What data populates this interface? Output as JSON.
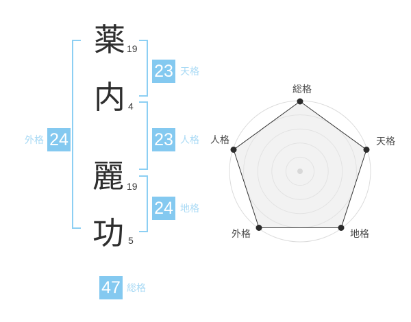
{
  "name_analysis": {
    "characters": [
      {
        "char": "薬",
        "strokes": "19"
      },
      {
        "char": "内",
        "strokes": "4"
      },
      {
        "char": "麗",
        "strokes": "19"
      },
      {
        "char": "功",
        "strokes": "5"
      }
    ],
    "kaku": {
      "tenkaku": {
        "label": "天格",
        "value": "23"
      },
      "jinkaku": {
        "label": "人格",
        "value": "23"
      },
      "chikaku": {
        "label": "地格",
        "value": "24"
      },
      "gaikaku": {
        "label": "外格",
        "value": "24"
      },
      "soukaku": {
        "label": "総格",
        "value": "47"
      }
    }
  },
  "chart_data": {
    "type": "radar",
    "axes": [
      "総格",
      "天格",
      "地格",
      "外格",
      "人格"
    ],
    "values_normalized": [
      1,
      1,
      1,
      1,
      1
    ],
    "scores": {
      "総格": 47,
      "天格": 23,
      "地格": 24,
      "外格": 24,
      "人格": 23
    },
    "ring_count": 5,
    "grid": "circular",
    "legend": false
  },
  "colors": {
    "badge_blue": "#84C9F0",
    "label_blue": "#A9DAF5",
    "bracket_blue": "#8CCFF3",
    "grid_gray": "#DBDBDB",
    "line_black": "#333333",
    "text_dark": "#2e2e2e"
  }
}
